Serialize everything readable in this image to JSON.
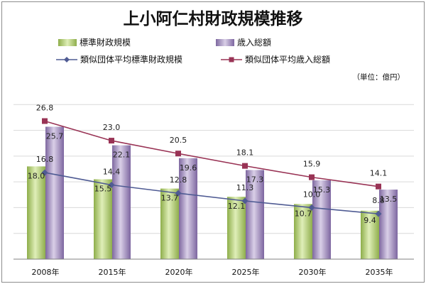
{
  "chart_data": {
    "type": "bar",
    "title": "上小阿仁村財政規模推移",
    "unit": "（単位：億円）",
    "categories": [
      "2008年",
      "2015年",
      "2020年",
      "2025年",
      "2030年",
      "2035年"
    ],
    "series": [
      {
        "name": "標準財政規模",
        "type": "bar",
        "values": [
          18.0,
          15.5,
          13.7,
          12.1,
          10.7,
          9.4
        ],
        "color": "#9bbb59"
      },
      {
        "name": "歳入総額",
        "type": "bar",
        "values": [
          25.7,
          22.1,
          19.6,
          17.3,
          15.3,
          13.5
        ],
        "color": "#8064a2"
      },
      {
        "name": "類似団体平均標準財政規模",
        "type": "line",
        "values": [
          16.8,
          14.4,
          12.8,
          11.3,
          10.0,
          8.8
        ],
        "color": "#4f5b93",
        "marker": "diamond"
      },
      {
        "name": "類似団体平均歳入総額",
        "type": "line",
        "values": [
          26.8,
          23.0,
          20.5,
          18.1,
          15.9,
          14.1
        ],
        "color": "#993355",
        "marker": "square"
      }
    ],
    "ylim": [
      0,
      35
    ],
    "grid": true,
    "legend_position": "top"
  }
}
